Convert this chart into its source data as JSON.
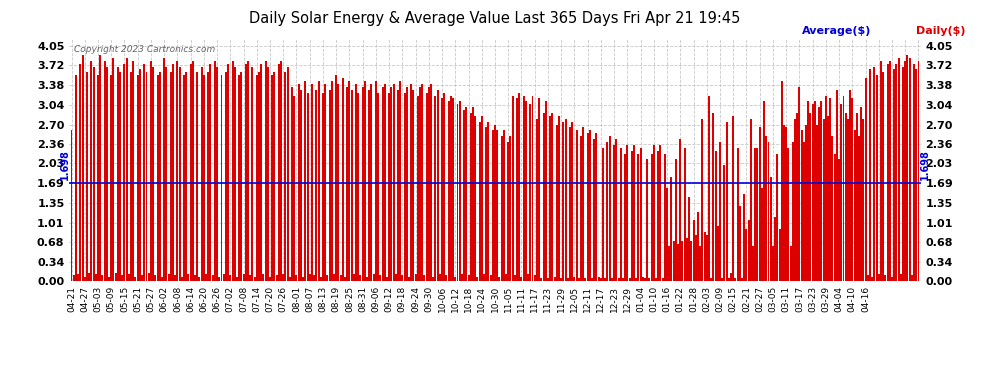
{
  "title": "Daily Solar Energy & Average Value Last 365 Days Fri Apr 21 19:45",
  "copyright": "Copyright 2023 Cartronics.com",
  "legend_average": "Average($)",
  "legend_daily": "Daily($)",
  "average_value": 1.698,
  "average_label": "1.698",
  "yticks": [
    0.0,
    0.34,
    0.68,
    1.01,
    1.35,
    1.69,
    2.03,
    2.36,
    2.7,
    3.04,
    3.38,
    3.72,
    4.05
  ],
  "ylim_max": 4.2,
  "bar_color": "#dd0000",
  "average_line_color": "#0000dd",
  "background_color": "#ffffff",
  "grid_color": "#bbbbbb",
  "title_color": "#000000",
  "copyright_color": "#666666",
  "x_labels": [
    "04-21",
    "04-27",
    "05-03",
    "05-09",
    "05-15",
    "05-21",
    "05-27",
    "06-02",
    "06-08",
    "06-14",
    "06-20",
    "06-26",
    "07-02",
    "07-08",
    "07-14",
    "07-20",
    "07-26",
    "08-01",
    "08-07",
    "08-13",
    "08-19",
    "08-25",
    "08-31",
    "09-06",
    "09-12",
    "09-18",
    "09-24",
    "09-30",
    "10-06",
    "10-12",
    "10-18",
    "10-24",
    "10-30",
    "11-05",
    "11-11",
    "11-17",
    "11-23",
    "11-29",
    "12-05",
    "12-11",
    "12-17",
    "12-23",
    "12-29",
    "01-04",
    "01-10",
    "01-16",
    "01-22",
    "01-28",
    "02-03",
    "02-09",
    "02-15",
    "02-21",
    "02-27",
    "03-05",
    "03-11",
    "03-17",
    "03-23",
    "03-29",
    "04-04",
    "04-10",
    "04-16"
  ],
  "bar_values": [
    2.6,
    0.1,
    3.55,
    0.12,
    3.75,
    3.9,
    0.08,
    3.6,
    0.15,
    3.8,
    3.7,
    0.12,
    3.55,
    3.9,
    0.1,
    3.8,
    3.7,
    0.08,
    3.55,
    3.85,
    0.15,
    3.7,
    3.6,
    0.1,
    3.75,
    3.85,
    0.12,
    3.6,
    3.8,
    0.08,
    3.55,
    3.65,
    0.1,
    3.75,
    3.6,
    0.15,
    3.8,
    3.7,
    0.1,
    3.55,
    3.6,
    0.08,
    3.85,
    3.7,
    0.12,
    3.6,
    3.75,
    0.1,
    3.8,
    3.7,
    0.08,
    3.55,
    3.6,
    0.12,
    3.75,
    3.8,
    0.1,
    3.6,
    0.08,
    3.7,
    3.55,
    0.12,
    3.6,
    3.75,
    0.1,
    3.8,
    3.7,
    0.08,
    3.55,
    0.12,
    3.6,
    3.75,
    0.1,
    3.8,
    3.7,
    0.08,
    3.55,
    3.6,
    0.12,
    3.75,
    3.8,
    0.1,
    3.7,
    0.08,
    3.55,
    3.6,
    3.75,
    0.12,
    3.8,
    3.7,
    0.08,
    3.55,
    3.6,
    0.1,
    3.75,
    3.8,
    0.12,
    3.6,
    3.7,
    0.08,
    3.35,
    3.2,
    0.1,
    3.4,
    3.3,
    0.08,
    3.45,
    3.25,
    0.12,
    3.4,
    0.1,
    3.3,
    3.45,
    0.08,
    3.25,
    3.4,
    0.1,
    3.3,
    3.45,
    0.12,
    3.55,
    3.4,
    0.1,
    3.5,
    0.08,
    3.35,
    3.45,
    3.3,
    0.12,
    3.4,
    3.25,
    0.1,
    3.35,
    3.45,
    0.08,
    3.3,
    3.4,
    0.12,
    3.45,
    3.25,
    0.1,
    3.35,
    3.4,
    0.08,
    3.25,
    3.35,
    3.4,
    0.12,
    3.3,
    3.45,
    0.1,
    3.25,
    3.35,
    0.08,
    3.4,
    3.3,
    0.12,
    3.2,
    3.35,
    3.4,
    0.1,
    3.25,
    3.35,
    3.4,
    0.08,
    3.2,
    3.3,
    0.12,
    3.15,
    3.25,
    0.1,
    3.1,
    3.2,
    3.15,
    0.08,
    3.05,
    3.1,
    0.12,
    2.95,
    3.0,
    0.1,
    2.9,
    3.0,
    2.85,
    0.08,
    2.75,
    2.85,
    0.12,
    2.65,
    2.75,
    0.1,
    2.6,
    2.7,
    2.6,
    0.08,
    2.5,
    2.6,
    0.12,
    2.4,
    2.5,
    3.2,
    0.1,
    3.15,
    3.25,
    0.08,
    3.2,
    3.1,
    0.12,
    3.05,
    3.2,
    0.1,
    2.8,
    3.15,
    0.05,
    2.9,
    3.1,
    0.05,
    2.85,
    2.9,
    0.08,
    2.7,
    2.85,
    0.05,
    2.75,
    2.8,
    0.05,
    2.65,
    2.75,
    0.08,
    2.6,
    0.05,
    2.5,
    2.65,
    0.05,
    2.55,
    2.6,
    0.05,
    2.45,
    2.55,
    0.08,
    0.05,
    2.3,
    0.05,
    2.4,
    2.5,
    0.05,
    2.35,
    2.45,
    0.05,
    2.3,
    0.05,
    2.2,
    2.35,
    0.05,
    2.25,
    2.35,
    0.05,
    2.2,
    2.3,
    0.08,
    0.05,
    2.1,
    0.05,
    2.2,
    2.35,
    0.05,
    2.25,
    2.35,
    0.05,
    2.2,
    1.6,
    0.6,
    1.8,
    0.7,
    2.1,
    0.65,
    2.45,
    0.7,
    2.3,
    0.75,
    1.45,
    0.7,
    1.05,
    0.8,
    1.2,
    0.6,
    2.8,
    0.85,
    0.8,
    3.2,
    0.05,
    2.9,
    2.25,
    0.95,
    2.4,
    0.05,
    2.0,
    2.75,
    0.05,
    0.15,
    2.85,
    0.05,
    2.3,
    1.3,
    0.05,
    1.5,
    0.9,
    1.05,
    2.8,
    0.6,
    2.3,
    2.3,
    2.65,
    1.6,
    3.1,
    2.5,
    2.4,
    1.8,
    0.6,
    1.1,
    2.2,
    0.9,
    3.45,
    2.7,
    2.65,
    2.3,
    0.6,
    2.4,
    2.8,
    2.9,
    3.35,
    2.6,
    2.4,
    2.7,
    3.1,
    2.9,
    3.05,
    3.1,
    2.7,
    3.0,
    3.1,
    2.8,
    3.2,
    2.85,
    3.15,
    2.5,
    2.2,
    3.3,
    2.1,
    3.05,
    3.2,
    2.9,
    2.8,
    3.3,
    3.15,
    2.6,
    2.9,
    2.5,
    3.0,
    2.8,
    3.5,
    0.1,
    3.65,
    0.08,
    3.7,
    3.55,
    0.12,
    3.8,
    3.6,
    0.1,
    3.75,
    3.8,
    0.08,
    3.65,
    3.75,
    3.85,
    0.12,
    3.7,
    3.8,
    3.9,
    3.85,
    0.1,
    3.75,
    3.65,
    3.8
  ]
}
